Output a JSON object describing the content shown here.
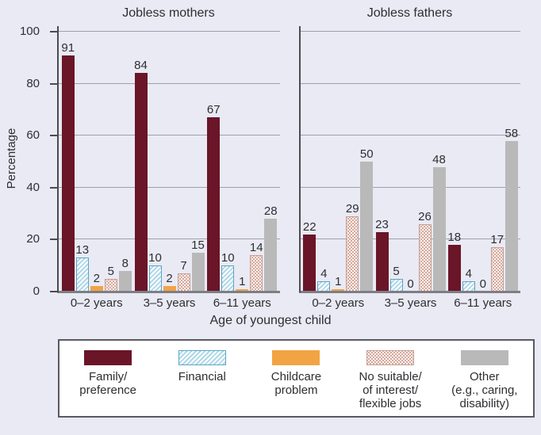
{
  "chart_data": {
    "type": "bar",
    "categories": [
      "0–2 years",
      "3–5 years",
      "6–11 years"
    ],
    "panels": [
      {
        "title": "Jobless mothers",
        "series": [
          {
            "name": "Family/preference",
            "values": [
              91,
              84,
              67
            ]
          },
          {
            "name": "Financial",
            "values": [
              13,
              10,
              10
            ]
          },
          {
            "name": "Childcare problem",
            "values": [
              2,
              2,
              1
            ]
          },
          {
            "name": "No suitable/of interest/flexible jobs",
            "values": [
              5,
              7,
              14
            ]
          },
          {
            "name": "Other (e.g., caring, disability)",
            "values": [
              8,
              15,
              28
            ]
          }
        ]
      },
      {
        "title": "Jobless fathers",
        "series": [
          {
            "name": "Family/preference",
            "values": [
              22,
              23,
              18
            ]
          },
          {
            "name": "Financial",
            "values": [
              4,
              5,
              4
            ]
          },
          {
            "name": "Childcare problem",
            "values": [
              1,
              0,
              0
            ]
          },
          {
            "name": "No suitable/of interest/flexible jobs",
            "values": [
              29,
              26,
              17
            ]
          },
          {
            "name": "Other (e.g., caring, disability)",
            "values": [
              50,
              48,
              58
            ]
          }
        ]
      }
    ],
    "xlabel": "Age of youngest child",
    "ylabel": "Percentage",
    "ylim": [
      0,
      100
    ],
    "yticks": [
      0,
      20,
      40,
      60,
      80,
      100
    ],
    "grid": true,
    "legend_position": "bottom"
  },
  "legend": {
    "items": [
      {
        "label": "Family/\npreference"
      },
      {
        "label": "Financial"
      },
      {
        "label": "Childcare\nproblem"
      },
      {
        "label": "No suitable/\nof interest/\nflexible jobs"
      },
      {
        "label": "Other\n(e.g., caring,\ndisability)"
      }
    ]
  },
  "colors": {
    "background": "#E9EAF3",
    "family_preference": "#6A1528",
    "financial_fill": "#CFE8F3",
    "financial_border": "#5FA3C6",
    "childcare_problem": "#F2A444",
    "no_suitable_fill": "#FCF5F1",
    "no_suitable_dot": "#CC9284",
    "other": "#B9B9B9",
    "gridline": "#9DA0AE"
  }
}
